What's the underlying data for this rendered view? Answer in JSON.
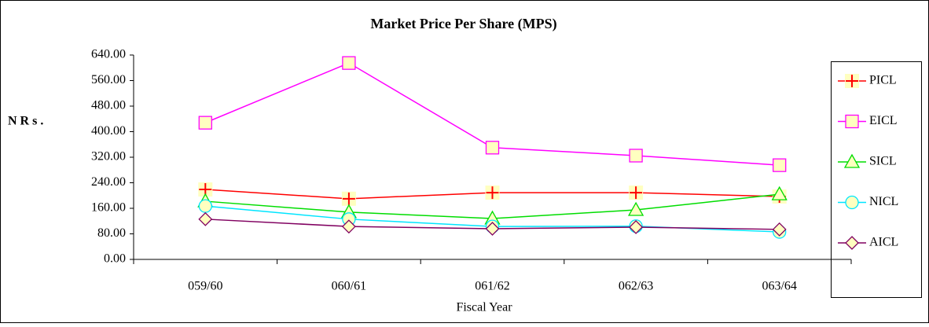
{
  "chart_data": {
    "type": "line",
    "title": "Market Price Per Share (MPS)",
    "y_label": "N R s .",
    "x_label": "Fiscal Year",
    "categories": [
      "059/60",
      "060/61",
      "061/62",
      "062/63",
      "063/64"
    ],
    "series": [
      {
        "name": "PICL",
        "color": "#ff0000",
        "marker": "plus",
        "values": [
          219,
          190,
          209,
          209,
          197
        ]
      },
      {
        "name": "EICL",
        "color": "#ff00ff",
        "marker": "square",
        "values": [
          428,
          615,
          350,
          325,
          295
        ]
      },
      {
        "name": "SICL",
        "color": "#00dd00",
        "marker": "triangle",
        "values": [
          182,
          148,
          128,
          155,
          204
        ]
      },
      {
        "name": "NICL",
        "color": "#00e5ff",
        "marker": "circle",
        "values": [
          167,
          126,
          103,
          104,
          86
        ]
      },
      {
        "name": "AICL",
        "color": "#800060",
        "marker": "diamond",
        "values": [
          126,
          103,
          96,
          101,
          94
        ]
      }
    ],
    "ylim": [
      0,
      640
    ],
    "yticks": [
      {
        "value": 0,
        "label": "0.00"
      },
      {
        "value": 80,
        "label": "80.00"
      },
      {
        "value": 160,
        "label": "160.00"
      },
      {
        "value": 240,
        "label": "240.00"
      },
      {
        "value": 320,
        "label": "320.00"
      },
      {
        "value": 400,
        "label": "400.00"
      },
      {
        "value": 480,
        "label": "480.00"
      },
      {
        "value": 560,
        "label": "560.00"
      },
      {
        "value": 640,
        "label": "640.00"
      }
    ],
    "grid": false,
    "legend": "right"
  }
}
